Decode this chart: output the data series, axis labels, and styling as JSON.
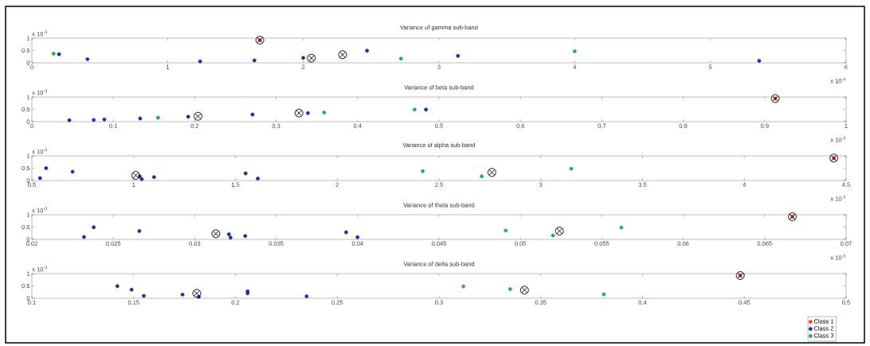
{
  "chart_data": [
    {
      "type": "scatter",
      "title": "Variance of gamma sub-band",
      "annotations": [
        "x 10$^{-3}$",
        "x 10$^{-4}$"
      ],
      "legend": false,
      "xlim": [
        0,
        6
      ],
      "xticks": [
        0,
        1,
        2,
        3,
        4,
        5,
        6
      ],
      "ylim": [
        0,
        1
      ],
      "yticks": [
        0,
        0.5,
        1
      ],
      "series": [
        {
          "color": "#ff3b1f",
          "marker": "circle",
          "x": [
            1.68
          ],
          "values": [
            0.92
          ]
        },
        {
          "color": "#1f2fa0",
          "marker": "circle",
          "x": [
            0.2,
            0.41,
            1.24,
            1.64,
            2.0,
            2.47,
            3.14,
            5.36
          ],
          "values": [
            0.35,
            0.15,
            0.06,
            0.1,
            0.2,
            0.49,
            0.28,
            0.08
          ]
        },
        {
          "color": "#22b14c",
          "marker": "circle",
          "x": [
            0.16,
            2.72,
            4.0
          ],
          "values": [
            0.37,
            0.17,
            0.47
          ]
        },
        {
          "color": "#000000",
          "marker": "cross",
          "x": [
            1.68,
            2.06,
            2.29
          ],
          "values": [
            0.92,
            0.19,
            0.33
          ]
        }
      ]
    },
    {
      "type": "scatter",
      "title": "Variance of beta sub-band",
      "annotations": [
        "x 10$^{-3}$",
        "x 10$^{-3}$"
      ],
      "legend": false,
      "xlim": [
        0,
        1
      ],
      "xticks": [
        0,
        0.1,
        0.2,
        0.3,
        0.4,
        0.5,
        0.6,
        0.7,
        0.8,
        0.9,
        1
      ],
      "ylim": [
        0,
        1
      ],
      "yticks": [
        0,
        0.5,
        1
      ],
      "series": [
        {
          "color": "#ff3b1f",
          "marker": "circle",
          "x": [
            0.913
          ],
          "values": [
            0.94
          ]
        },
        {
          "color": "#1f2fa0",
          "marker": "circle",
          "x": [
            0.046,
            0.076,
            0.089,
            0.133,
            0.192,
            0.271,
            0.339,
            0.484
          ],
          "values": [
            0.06,
            0.07,
            0.09,
            0.13,
            0.2,
            0.29,
            0.35,
            0.49
          ]
        },
        {
          "color": "#22b14c",
          "marker": "circle",
          "x": [
            0.155,
            0.359,
            0.47
          ],
          "values": [
            0.16,
            0.37,
            0.49
          ]
        },
        {
          "color": "#000000",
          "marker": "cross",
          "x": [
            0.204,
            0.328,
            0.913
          ],
          "values": [
            0.22,
            0.35,
            0.94
          ]
        }
      ]
    },
    {
      "type": "scatter",
      "title": "Variance of alpha sub-band",
      "annotations": [
        "x 10$^{-3}$",
        "x 10$^{-3}$"
      ],
      "legend": false,
      "xlim": [
        0.5,
        4.5
      ],
      "xticks": [
        0.5,
        1,
        1.5,
        2,
        2.5,
        3,
        3.5,
        4,
        4.5
      ],
      "ylim": [
        0,
        1
      ],
      "yticks": [
        0,
        0.5,
        1
      ],
      "series": [
        {
          "color": "#ff3b1f",
          "marker": "circle",
          "x": [
            4.44
          ],
          "values": [
            0.91
          ]
        },
        {
          "color": "#1f2fa0",
          "marker": "circle",
          "x": [
            0.54,
            0.57,
            0.7,
            1.03,
            1.04,
            1.1,
            1.55,
            1.61
          ],
          "values": [
            0.1,
            0.5,
            0.36,
            0.17,
            0.06,
            0.14,
            0.29,
            0.08
          ]
        },
        {
          "color": "#22b14c",
          "marker": "circle",
          "x": [
            2.42,
            2.71,
            3.15
          ],
          "values": [
            0.38,
            0.17,
            0.48
          ]
        },
        {
          "color": "#000000",
          "marker": "cross",
          "x": [
            1.01,
            2.76,
            4.44
          ],
          "values": [
            0.21,
            0.33,
            0.91
          ]
        }
      ]
    },
    {
      "type": "scatter",
      "title": "Variance of theta sub-band",
      "annotations": [
        "x 10$^{-3}$",
        "x 10$^{-3}$"
      ],
      "legend": false,
      "xlim": [
        0.02,
        0.07
      ],
      "xticks": [
        0.02,
        0.025,
        0.03,
        0.035,
        0.04,
        0.045,
        0.05,
        0.055,
        0.06,
        0.065,
        0.07
      ],
      "ylim": [
        0,
        1
      ],
      "yticks": [
        0,
        0.5,
        1
      ],
      "series": [
        {
          "color": "#ff3b1f",
          "marker": "circle",
          "x": [
            0.0667
          ],
          "values": [
            0.92
          ]
        },
        {
          "color": "#1f2fa0",
          "marker": "circle",
          "x": [
            0.0232,
            0.0238,
            0.0266,
            0.0321,
            0.0322,
            0.0331,
            0.0393,
            0.04
          ],
          "values": [
            0.1,
            0.49,
            0.34,
            0.21,
            0.07,
            0.14,
            0.29,
            0.09
          ]
        },
        {
          "color": "#22b14c",
          "marker": "circle",
          "x": [
            0.0491,
            0.052,
            0.0562
          ],
          "values": [
            0.36,
            0.16,
            0.48
          ]
        },
        {
          "color": "#000000",
          "marker": "cross",
          "x": [
            0.0313,
            0.0524,
            0.0667
          ],
          "values": [
            0.23,
            0.34,
            0.92
          ]
        }
      ]
    },
    {
      "type": "scatter",
      "title": "Variance of delta sub-band",
      "annotations": [
        "x 10$^{-3}$"
      ],
      "legend": "bottom right",
      "xlim": [
        0.1,
        0.5
      ],
      "xticks": [
        0.1,
        0.15,
        0.2,
        0.25,
        0.3,
        0.35,
        0.4,
        0.45,
        0.5
      ],
      "ylim": [
        0,
        1
      ],
      "yticks": [
        0,
        0.5,
        1
      ],
      "series": [
        {
          "name": "Class 1",
          "color": "#ff3b1f",
          "marker": "circle",
          "x": [
            0.448
          ],
          "values": [
            0.92
          ]
        },
        {
          "name": "Class 2",
          "color": "#1f2fa0",
          "marker": "circle",
          "x": [
            0.142,
            0.149,
            0.155,
            0.174,
            0.182,
            0.206,
            0.206,
            0.235
          ],
          "values": [
            0.49,
            0.35,
            0.1,
            0.15,
            0.06,
            0.28,
            0.2,
            0.08
          ]
        },
        {
          "name": "Class 3",
          "color": "#22b14c",
          "marker": "circle",
          "x": [
            0.312,
            0.335,
            0.381
          ],
          "values": [
            0.48,
            0.37,
            0.16
          ]
        },
        {
          "color": "#000000",
          "marker": "cross",
          "x": [
            0.181,
            0.342,
            0.448
          ],
          "values": [
            0.2,
            0.33,
            0.92
          ]
        }
      ]
    }
  ]
}
